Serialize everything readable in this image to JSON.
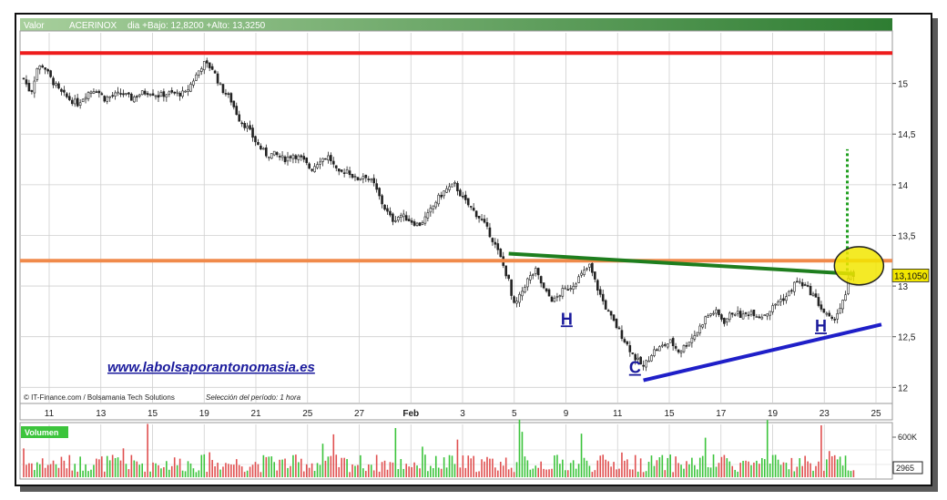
{
  "header": {
    "prefix": "Valor",
    "ticker": "ACERINOX",
    "info": "dia +Bajo: 12,8200 +Alto: 13,3250"
  },
  "footer_credit": "© IT-Finance.com / Bolsamania Tech Solutions",
  "footer_period": "Selección del período: 1 hora",
  "watermark": "www.labolsaporantonomasia.es",
  "colors": {
    "header_left": "#a7cf9c",
    "header_right": "#2e7d32",
    "candle": "#222222",
    "resistance_top": "#ee1c1c",
    "resistance_neck": "#f08a4b",
    "neckline": "#1e7e1e",
    "support": "#1f1fc8",
    "target": "#1e9e1e",
    "circle": "#f2e600",
    "label": "#1a1a9c",
    "vol_up": "#3cc43c",
    "vol_down": "#e05050"
  },
  "price_tag": "13,1050",
  "volume_label": "Volumen",
  "volume_tick": "600K",
  "volume_last": "2965",
  "chart_data": {
    "type": "candlestick",
    "x_ticks": [
      "11",
      "13",
      "15",
      "19",
      "21",
      "25",
      "27",
      "Feb",
      "3",
      "5",
      "9",
      "11",
      "15",
      "17",
      "19",
      "23",
      "25"
    ],
    "y_ticks": [
      "12",
      "12,5",
      "13",
      "13,5",
      "14",
      "14,5",
      "15"
    ],
    "y_tick_values": [
      12,
      12.5,
      13,
      13.5,
      14,
      14.5,
      15
    ],
    "ylim": [
      11.85,
      15.5
    ],
    "path": [
      [
        0,
        15.05
      ],
      [
        8,
        14.9
      ],
      [
        15,
        15.15
      ],
      [
        22,
        15.18
      ],
      [
        30,
        15.05
      ],
      [
        40,
        14.92
      ],
      [
        50,
        14.85
      ],
      [
        60,
        14.8
      ],
      [
        70,
        14.9
      ],
      [
        80,
        14.95
      ],
      [
        90,
        14.85
      ],
      [
        100,
        14.88
      ],
      [
        110,
        14.9
      ],
      [
        120,
        14.85
      ],
      [
        130,
        14.9
      ],
      [
        140,
        14.92
      ],
      [
        150,
        14.88
      ],
      [
        160,
        14.9
      ],
      [
        170,
        14.9
      ],
      [
        180,
        14.9
      ],
      [
        190,
        15.05
      ],
      [
        200,
        15.2
      ],
      [
        210,
        15.15
      ],
      [
        220,
        14.95
      ],
      [
        230,
        14.85
      ],
      [
        240,
        14.65
      ],
      [
        250,
        14.55
      ],
      [
        260,
        14.4
      ],
      [
        270,
        14.3
      ],
      [
        280,
        14.3
      ],
      [
        290,
        14.25
      ],
      [
        300,
        14.3
      ],
      [
        310,
        14.25
      ],
      [
        320,
        14.15
      ],
      [
        330,
        14.25
      ],
      [
        340,
        14.28
      ],
      [
        350,
        14.1
      ],
      [
        360,
        14.15
      ],
      [
        370,
        14.05
      ],
      [
        380,
        14.1
      ],
      [
        390,
        14.0
      ],
      [
        400,
        13.8
      ],
      [
        410,
        13.65
      ],
      [
        420,
        13.7
      ],
      [
        430,
        13.65
      ],
      [
        440,
        13.6
      ],
      [
        450,
        13.7
      ],
      [
        460,
        13.85
      ],
      [
        470,
        13.95
      ],
      [
        480,
        14.0
      ],
      [
        490,
        13.85
      ],
      [
        500,
        13.75
      ],
      [
        510,
        13.65
      ],
      [
        520,
        13.5
      ],
      [
        530,
        13.3
      ],
      [
        540,
        13.05
      ],
      [
        545,
        12.8
      ],
      [
        550,
        12.85
      ],
      [
        555,
        12.95
      ],
      [
        560,
        13.05
      ],
      [
        570,
        13.15
      ],
      [
        580,
        12.95
      ],
      [
        590,
        12.85
      ],
      [
        600,
        12.95
      ],
      [
        610,
        13.0
      ],
      [
        620,
        13.1
      ],
      [
        630,
        13.2
      ],
      [
        640,
        12.95
      ],
      [
        650,
        12.75
      ],
      [
        660,
        12.6
      ],
      [
        670,
        12.45
      ],
      [
        680,
        12.3
      ],
      [
        690,
        12.2
      ],
      [
        700,
        12.35
      ],
      [
        710,
        12.4
      ],
      [
        720,
        12.45
      ],
      [
        730,
        12.35
      ],
      [
        740,
        12.45
      ],
      [
        750,
        12.55
      ],
      [
        760,
        12.7
      ],
      [
        770,
        12.75
      ],
      [
        780,
        12.65
      ],
      [
        790,
        12.75
      ],
      [
        800,
        12.7
      ],
      [
        810,
        12.75
      ],
      [
        820,
        12.7
      ],
      [
        830,
        12.75
      ],
      [
        840,
        12.85
      ],
      [
        850,
        12.9
      ],
      [
        860,
        13.05
      ],
      [
        870,
        13.0
      ],
      [
        880,
        12.9
      ],
      [
        890,
        12.75
      ],
      [
        900,
        12.65
      ],
      [
        910,
        12.8
      ],
      [
        915,
        12.9
      ],
      [
        920,
        13.15
      ],
      [
        925,
        13.1
      ]
    ],
    "resistance_top": 15.3,
    "resistance_neck": 13.25,
    "neckline": [
      [
        540,
        13.32
      ],
      [
        925,
        13.12
      ]
    ],
    "support": [
      [
        690,
        12.07
      ],
      [
        955,
        12.62
      ]
    ],
    "target": {
      "x": 917,
      "from": 13.15,
      "to": 14.35
    },
    "circle": {
      "x": 930,
      "y": 13.2
    },
    "annotations": [
      {
        "label": "H",
        "x": 598,
        "y": 12.62
      },
      {
        "label": "C",
        "x": 674,
        "y": 12.14
      },
      {
        "label": "H",
        "x": 881,
        "y": 12.55
      }
    ],
    "volume_max": 700000
  }
}
